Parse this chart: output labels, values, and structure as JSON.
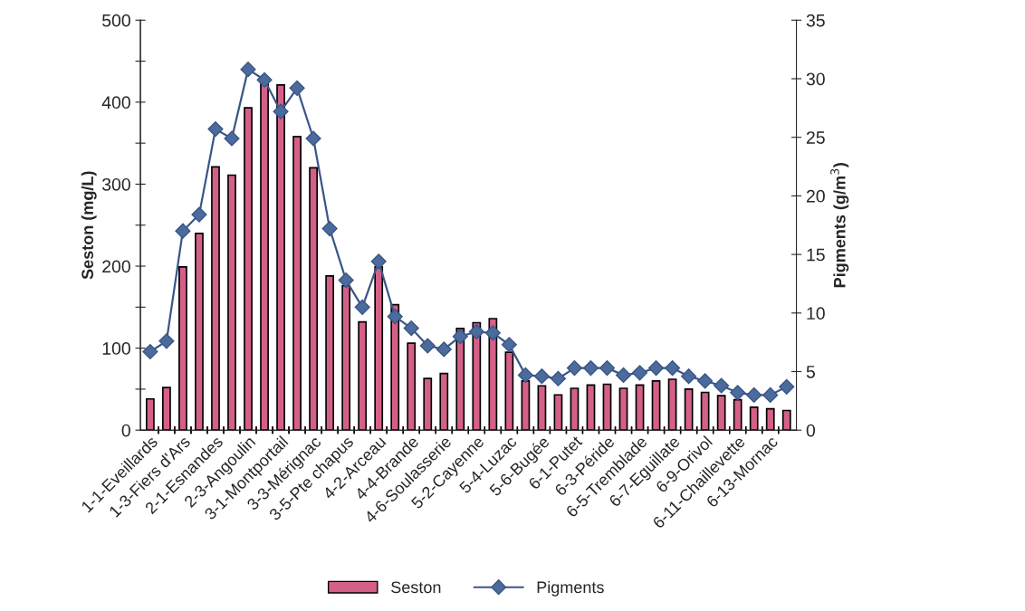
{
  "chart_data": {
    "type": "bar",
    "categories": [
      "1-1-Eveillards",
      null,
      "1-3-Fiers d'Ars",
      null,
      "2-1-Esnandes",
      null,
      "2-3-Angoulin",
      null,
      "3-1-Montportail",
      null,
      "3-3-Mérignac",
      null,
      "3-5-Pte chapus",
      null,
      "4-2-Arceau",
      null,
      "4-4-Brande",
      null,
      "4-6-Soulasserie",
      null,
      "5-2-Cayenne",
      null,
      "5-4-Luzac",
      null,
      "5-6-Bugée",
      null,
      "6-1-Putet",
      null,
      "6-3-Péride",
      null,
      "6-5-Tremblade",
      null,
      "6-7-Eguillate",
      null,
      "6-9-Orivol",
      null,
      "6-11-Chaillevette",
      null,
      "6-13-Mornac",
      null
    ],
    "series": [
      {
        "name": "Seston",
        "color": "#d4608a",
        "values": [
          38,
          52,
          199,
          240,
          321,
          311,
          393,
          423,
          421,
          358,
          320,
          188,
          176,
          132,
          199,
          153,
          106,
          63,
          69,
          124,
          131,
          136,
          95,
          60,
          54,
          43,
          51,
          55,
          56,
          51,
          55,
          60,
          62,
          50,
          46,
          42,
          37,
          28,
          26,
          24
        ]
      },
      {
        "name": "Pigments",
        "type": "line",
        "axis": "y2",
        "color": "#3b5587",
        "marker": "diamond",
        "values": [
          6.7,
          7.6,
          17.0,
          18.4,
          25.7,
          24.9,
          30.8,
          29.9,
          27.2,
          29.2,
          24.9,
          17.2,
          12.8,
          10.5,
          14.4,
          9.7,
          8.7,
          7.2,
          6.9,
          8.0,
          8.4,
          8.3,
          7.3,
          4.7,
          4.6,
          4.4,
          5.3,
          5.3,
          5.3,
          4.7,
          4.9,
          5.3,
          5.3,
          4.6,
          4.2,
          3.8,
          3.2,
          3.0,
          3.0,
          3.7
        ]
      }
    ],
    "ylabel": "Seston (mg/L)",
    "y2label": "Pigments (g/m$^{3}$)",
    "ylim": [
      0,
      500
    ],
    "yticks": [
      0,
      {
        "value": 50,
        "label": null
      },
      100,
      {
        "value": 150,
        "label": null
      },
      200,
      {
        "value": 250,
        "label": null
      },
      300,
      {
        "value": 350,
        "label": null
      },
      400,
      {
        "value": 450,
        "label": null
      },
      500
    ],
    "y2lim": [
      0,
      35
    ],
    "y2ticks": [
      0,
      5,
      10,
      15,
      20,
      25,
      30,
      35
    ],
    "grid": false,
    "legend": "bottom"
  }
}
